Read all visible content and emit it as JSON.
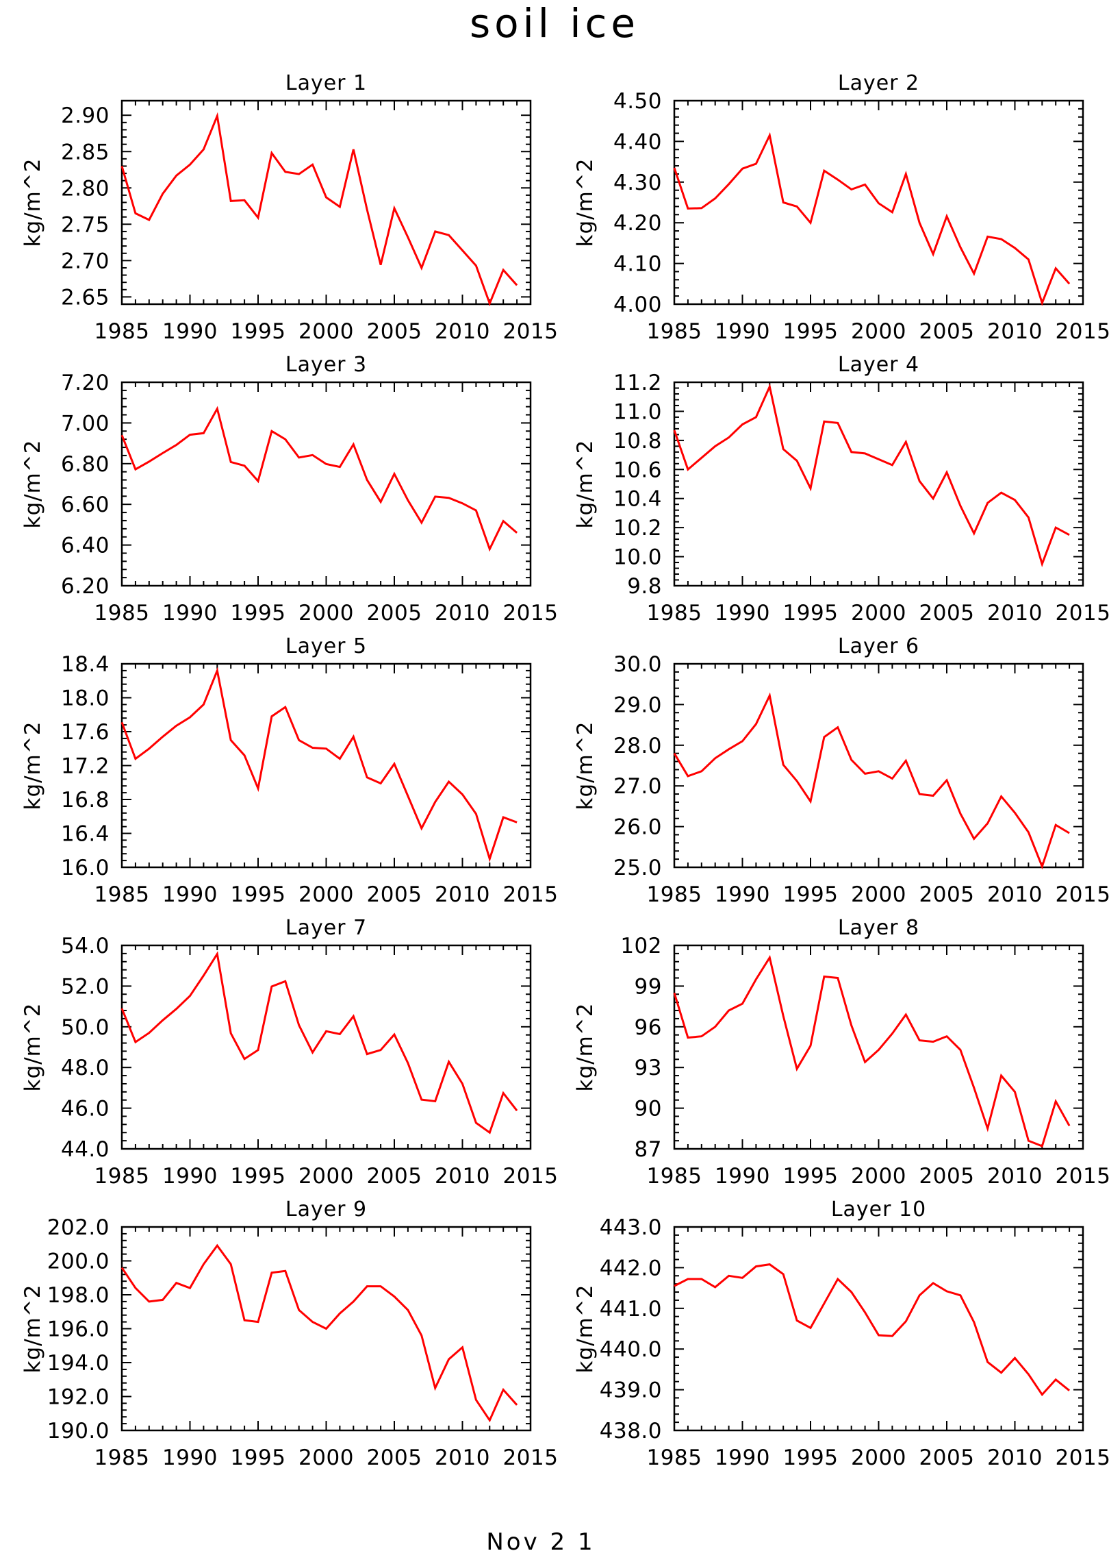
{
  "figure": {
    "title": "soil ice",
    "footer": "Nov 2 1"
  },
  "chart_data": [
    {
      "type": "line",
      "title": "Layer 1",
      "ylabel": "kg/m^2",
      "xlim": [
        1985,
        2015
      ],
      "ylim": [
        2.64,
        2.92
      ],
      "xticks": [
        "1985",
        "1990",
        "1995",
        "2000",
        "2005",
        "2010",
        "2015"
      ],
      "yticks": [
        "2.65",
        "2.70",
        "2.75",
        "2.80",
        "2.85",
        "2.90"
      ],
      "line_color": "#ff0000",
      "x": [
        1985,
        1986,
        1987,
        1988,
        1989,
        1990,
        1991,
        1992,
        1993,
        1994,
        1995,
        1996,
        1997,
        1998,
        1999,
        2000,
        2001,
        2002,
        2003,
        2004,
        2005,
        2006,
        2007,
        2008,
        2009,
        2010,
        2011,
        2012,
        2013,
        2014
      ],
      "y": [
        2.83,
        2.765,
        2.756,
        2.792,
        2.817,
        2.832,
        2.853,
        2.899,
        2.782,
        2.783,
        2.759,
        2.848,
        2.822,
        2.819,
        2.832,
        2.787,
        2.774,
        2.853,
        2.77,
        2.694,
        2.772,
        2.732,
        2.69,
        2.74,
        2.735,
        2.714,
        2.693,
        2.641,
        2.687,
        2.666
      ]
    },
    {
      "type": "line",
      "title": "Layer 2",
      "ylabel": "kg/m^2",
      "xlim": [
        1985,
        2015
      ],
      "ylim": [
        4.0,
        4.5
      ],
      "xticks": [
        "1985",
        "1990",
        "1995",
        "2000",
        "2005",
        "2010",
        "2015"
      ],
      "yticks": [
        "4.00",
        "4.10",
        "4.20",
        "4.30",
        "4.40",
        "4.50"
      ],
      "line_color": "#ff0000",
      "x": [
        1985,
        1986,
        1987,
        1988,
        1989,
        1990,
        1991,
        1992,
        1993,
        1994,
        1995,
        1996,
        1997,
        1998,
        1999,
        2000,
        2001,
        2002,
        2003,
        2004,
        2005,
        2006,
        2007,
        2008,
        2009,
        2010,
        2011,
        2012,
        2013,
        2014
      ],
      "y": [
        4.335,
        4.235,
        4.236,
        4.26,
        4.295,
        4.333,
        4.345,
        4.415,
        4.25,
        4.24,
        4.2,
        4.328,
        4.306,
        4.282,
        4.294,
        4.248,
        4.226,
        4.32,
        4.2,
        4.123,
        4.216,
        4.14,
        4.075,
        4.166,
        4.16,
        4.138,
        4.11,
        4.003,
        4.088,
        4.05
      ]
    },
    {
      "type": "line",
      "title": "Layer 3",
      "ylabel": "kg/m^2",
      "xlim": [
        1985,
        2015
      ],
      "ylim": [
        6.2,
        7.2
      ],
      "xticks": [
        "1985",
        "1990",
        "1995",
        "2000",
        "2005",
        "2010",
        "2015"
      ],
      "yticks": [
        "6.20",
        "6.40",
        "6.60",
        "6.80",
        "7.00",
        "7.20"
      ],
      "line_color": "#ff0000",
      "x": [
        1985,
        1986,
        1987,
        1988,
        1989,
        1990,
        1991,
        1992,
        1993,
        1994,
        1995,
        1996,
        1997,
        1998,
        1999,
        2000,
        2001,
        2002,
        2003,
        2004,
        2005,
        2006,
        2007,
        2008,
        2009,
        2010,
        2011,
        2012,
        2013,
        2014
      ],
      "y": [
        6.94,
        6.772,
        6.81,
        6.852,
        6.892,
        6.942,
        6.95,
        7.07,
        6.808,
        6.79,
        6.714,
        6.96,
        6.92,
        6.83,
        6.842,
        6.798,
        6.784,
        6.895,
        6.72,
        6.612,
        6.75,
        6.62,
        6.51,
        6.638,
        6.632,
        6.605,
        6.57,
        6.38,
        6.518,
        6.46
      ]
    },
    {
      "type": "line",
      "title": "Layer 4",
      "ylabel": "kg/m^2",
      "xlim": [
        1985,
        2015
      ],
      "ylim": [
        9.8,
        11.2
      ],
      "xticks": [
        "1985",
        "1990",
        "1995",
        "2000",
        "2005",
        "2010",
        "2015"
      ],
      "yticks": [
        "9.8",
        "10.0",
        "10.2",
        "10.4",
        "10.6",
        "10.8",
        "11.0",
        "11.2"
      ],
      "line_color": "#ff0000",
      "x": [
        1985,
        1986,
        1987,
        1988,
        1989,
        1990,
        1991,
        1992,
        1993,
        1994,
        1995,
        1996,
        1997,
        1998,
        1999,
        2000,
        2001,
        2002,
        2003,
        2004,
        2005,
        2006,
        2007,
        2008,
        2009,
        2010,
        2011,
        2012,
        2013,
        2014
      ],
      "y": [
        10.87,
        10.6,
        10.68,
        10.76,
        10.82,
        10.91,
        10.96,
        11.17,
        10.74,
        10.66,
        10.47,
        10.93,
        10.92,
        10.72,
        10.71,
        10.67,
        10.63,
        10.79,
        10.52,
        10.4,
        10.58,
        10.35,
        10.16,
        10.37,
        10.44,
        10.39,
        10.27,
        9.95,
        10.2,
        10.15
      ]
    },
    {
      "type": "line",
      "title": "Layer 5",
      "ylabel": "kg/m^2",
      "xlim": [
        1985,
        2015
      ],
      "ylim": [
        16.0,
        18.4
      ],
      "xticks": [
        "1985",
        "1990",
        "1995",
        "2000",
        "2005",
        "2010",
        "2015"
      ],
      "yticks": [
        "16.0",
        "16.4",
        "16.8",
        "17.2",
        "17.6",
        "18.0",
        "18.4"
      ],
      "line_color": "#ff0000",
      "x": [
        1985,
        1986,
        1987,
        1988,
        1989,
        1990,
        1991,
        1992,
        1993,
        1994,
        1995,
        1996,
        1997,
        1998,
        1999,
        2000,
        2001,
        2002,
        2003,
        2004,
        2005,
        2006,
        2007,
        2008,
        2009,
        2010,
        2011,
        2012,
        2013,
        2014
      ],
      "y": [
        17.71,
        17.28,
        17.4,
        17.54,
        17.67,
        17.77,
        17.92,
        18.32,
        17.5,
        17.32,
        16.93,
        17.78,
        17.89,
        17.5,
        17.41,
        17.4,
        17.28,
        17.54,
        17.06,
        16.99,
        17.22,
        16.84,
        16.46,
        16.77,
        17.01,
        16.86,
        16.63,
        16.1,
        16.59,
        16.53
      ]
    },
    {
      "type": "line",
      "title": "Layer 6",
      "ylabel": "kg/m^2",
      "xlim": [
        1985,
        2015
      ],
      "ylim": [
        25.0,
        30.0
      ],
      "xticks": [
        "1985",
        "1990",
        "1995",
        "2000",
        "2005",
        "2010",
        "2015"
      ],
      "yticks": [
        "25.0",
        "26.0",
        "27.0",
        "28.0",
        "29.0",
        "30.0"
      ],
      "line_color": "#ff0000",
      "x": [
        1985,
        1986,
        1987,
        1988,
        1989,
        1990,
        1991,
        1992,
        1993,
        1994,
        1995,
        1996,
        1997,
        1998,
        1999,
        2000,
        2001,
        2002,
        2003,
        2004,
        2005,
        2006,
        2007,
        2008,
        2009,
        2010,
        2011,
        2012,
        2013,
        2014
      ],
      "y": [
        27.8,
        27.24,
        27.36,
        27.68,
        27.9,
        28.1,
        28.52,
        29.22,
        27.52,
        27.12,
        26.62,
        28.2,
        28.44,
        27.64,
        27.3,
        27.36,
        27.18,
        27.62,
        26.8,
        26.76,
        27.14,
        26.32,
        25.7,
        26.08,
        26.74,
        26.34,
        25.86,
        25.02,
        26.04,
        25.84
      ]
    },
    {
      "type": "line",
      "title": "Layer 7",
      "ylabel": "kg/m^2",
      "xlim": [
        1985,
        2015
      ],
      "ylim": [
        44.0,
        54.0
      ],
      "xticks": [
        "1985",
        "1990",
        "1995",
        "2000",
        "2005",
        "2010",
        "2015"
      ],
      "yticks": [
        "44.0",
        "46.0",
        "48.0",
        "50.0",
        "52.0",
        "54.0"
      ],
      "line_color": "#ff0000",
      "x": [
        1985,
        1986,
        1987,
        1988,
        1989,
        1990,
        1991,
        1992,
        1993,
        1994,
        1995,
        1996,
        1997,
        1998,
        1999,
        2000,
        2001,
        2002,
        2003,
        2004,
        2005,
        2006,
        2007,
        2008,
        2009,
        2010,
        2011,
        2012,
        2013,
        2014
      ],
      "y": [
        50.9,
        49.25,
        49.7,
        50.32,
        50.88,
        51.52,
        52.52,
        53.58,
        49.68,
        48.42,
        48.86,
        51.98,
        52.24,
        50.08,
        48.74,
        49.78,
        49.64,
        50.52,
        48.66,
        48.86,
        49.62,
        48.22,
        46.42,
        46.34,
        48.28,
        47.2,
        45.28,
        44.8,
        46.74,
        45.88
      ]
    },
    {
      "type": "line",
      "title": "Layer 8",
      "ylabel": "kg/m^2",
      "xlim": [
        1985,
        2015
      ],
      "ylim": [
        87,
        102
      ],
      "xticks": [
        "1985",
        "1990",
        "1995",
        "2000",
        "2005",
        "2010",
        "2015"
      ],
      "yticks": [
        "87",
        "90",
        "93",
        "96",
        "99",
        "102"
      ],
      "line_color": "#ff0000",
      "x": [
        1985,
        1986,
        1987,
        1988,
        1989,
        1990,
        1991,
        1992,
        1993,
        1994,
        1995,
        1996,
        1997,
        1998,
        1999,
        2000,
        2001,
        2002,
        2003,
        2004,
        2005,
        2006,
        2007,
        2008,
        2009,
        2010,
        2011,
        2012,
        2013,
        2014
      ],
      "y": [
        98.5,
        95.2,
        95.3,
        96.0,
        97.2,
        97.7,
        99.5,
        101.1,
        96.8,
        92.9,
        94.6,
        99.7,
        99.6,
        96.1,
        93.4,
        94.3,
        95.5,
        96.9,
        95.0,
        94.9,
        95.3,
        94.3,
        91.5,
        88.5,
        92.4,
        91.2,
        87.6,
        87.2,
        90.5,
        88.7
      ]
    },
    {
      "type": "line",
      "title": "Layer 9",
      "ylabel": "kg/m^2",
      "xlim": [
        1985,
        2015
      ],
      "ylim": [
        190.0,
        202.0
      ],
      "xticks": [
        "1985",
        "1990",
        "1995",
        "2000",
        "2005",
        "2010",
        "2015"
      ],
      "yticks": [
        "190.0",
        "192.0",
        "194.0",
        "196.0",
        "198.0",
        "200.0",
        "202.0"
      ],
      "line_color": "#ff0000",
      "x": [
        1985,
        1986,
        1987,
        1988,
        1989,
        1990,
        1991,
        1992,
        1993,
        1994,
        1995,
        1996,
        1997,
        1998,
        1999,
        2000,
        2001,
        2002,
        2003,
        2004,
        2005,
        2006,
        2007,
        2008,
        2009,
        2010,
        2011,
        2012,
        2013,
        2014
      ],
      "y": [
        199.6,
        198.4,
        197.6,
        197.7,
        198.7,
        198.4,
        199.8,
        200.9,
        199.8,
        196.5,
        196.4,
        199.3,
        199.4,
        197.1,
        196.4,
        196.0,
        196.9,
        197.6,
        198.5,
        198.5,
        197.9,
        197.1,
        195.6,
        192.5,
        194.2,
        194.9,
        191.8,
        190.6,
        192.4,
        191.5
      ]
    },
    {
      "type": "line",
      "title": "Layer 10",
      "ylabel": "kg/m^2",
      "xlim": [
        1985,
        2015
      ],
      "ylim": [
        438.0,
        443.0
      ],
      "xticks": [
        "1985",
        "1990",
        "1995",
        "2000",
        "2005",
        "2010",
        "2015"
      ],
      "yticks": [
        "438.0",
        "439.0",
        "440.0",
        "441.0",
        "442.0",
        "443.0"
      ],
      "line_color": "#ff0000",
      "x": [
        1985,
        1986,
        1987,
        1988,
        1989,
        1990,
        1991,
        1992,
        1993,
        1994,
        1995,
        1996,
        1997,
        1998,
        1999,
        2000,
        2001,
        2002,
        2003,
        2004,
        2005,
        2006,
        2007,
        2008,
        2009,
        2010,
        2011,
        2012,
        2013,
        2014
      ],
      "y": [
        441.55,
        441.72,
        441.72,
        441.52,
        441.8,
        441.75,
        442.03,
        442.08,
        441.84,
        440.7,
        440.52,
        441.12,
        441.72,
        441.4,
        440.9,
        440.34,
        440.32,
        440.68,
        441.32,
        441.62,
        441.42,
        441.32,
        440.66,
        439.68,
        439.42,
        439.78,
        439.38,
        438.88,
        439.25,
        438.98
      ]
    }
  ]
}
